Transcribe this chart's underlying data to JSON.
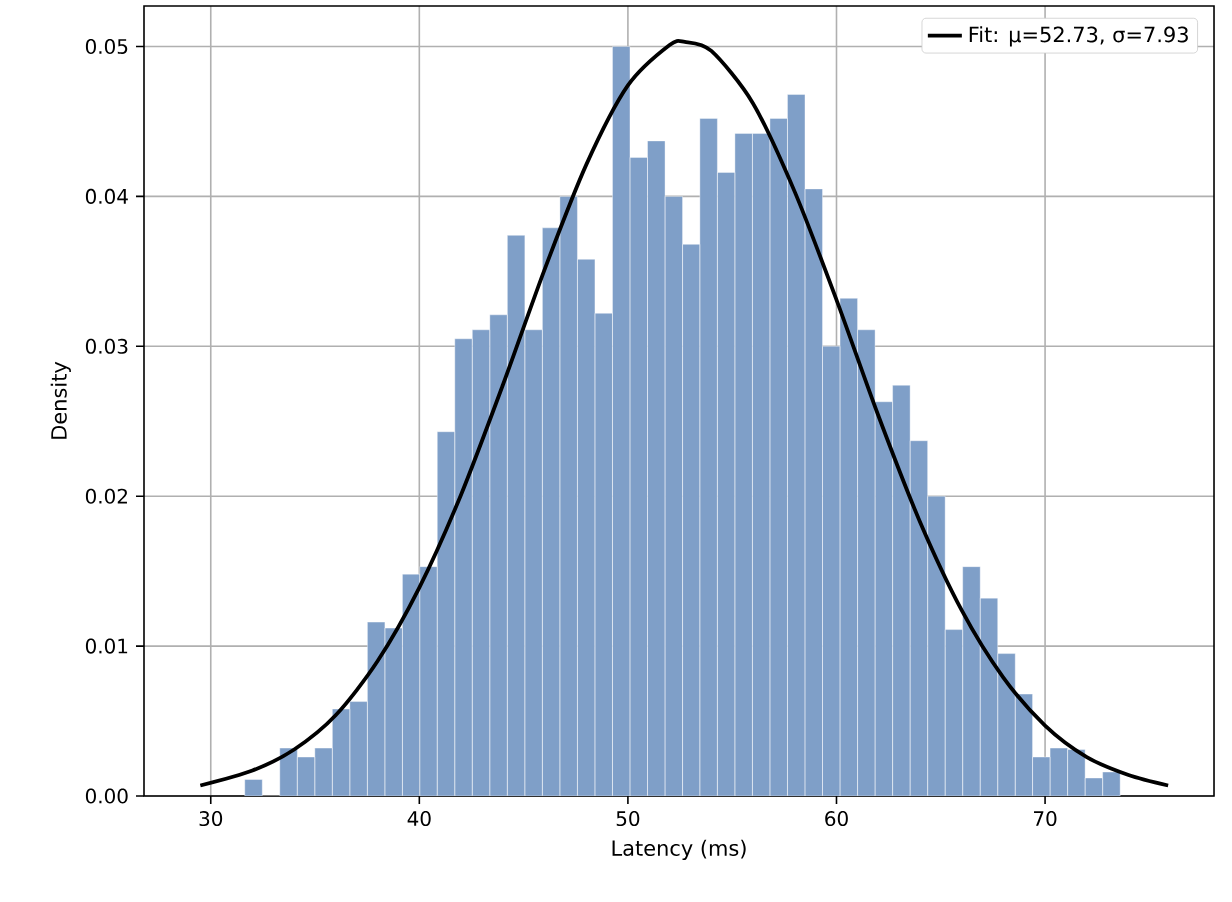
{
  "chart_data": {
    "type": "histogram",
    "xlabel": "Latency (ms)",
    "ylabel": "Density",
    "bins": [
      31.63,
      32.47,
      33.31,
      34.15,
      34.99,
      35.83,
      36.67,
      37.51,
      38.35,
      39.19,
      40.02,
      40.86,
      41.7,
      42.54,
      43.38,
      44.22,
      45.06,
      45.9,
      46.74,
      47.58,
      48.42,
      49.26,
      50.1,
      50.94,
      51.78,
      52.62,
      53.45,
      54.29,
      55.13,
      55.97,
      56.81,
      57.65,
      58.49,
      59.33,
      60.17,
      61.01,
      61.85,
      62.69,
      63.53,
      64.37,
      65.21,
      66.05,
      66.89,
      67.73,
      68.57,
      69.4,
      70.24,
      71.08,
      71.92,
      72.76,
      73.6
    ],
    "values": [
      0.0011,
      0,
      0.0032,
      0.0026,
      0.0032,
      0.0058,
      0.0063,
      0.0116,
      0.0112,
      0.0148,
      0.0153,
      0.0243,
      0.0305,
      0.0311,
      0.0321,
      0.0374,
      0.0311,
      0.0379,
      0.04,
      0.0358,
      0.0322,
      0.05,
      0.0426,
      0.0437,
      0.04,
      0.0368,
      0.0452,
      0.0416,
      0.0442,
      0.0442,
      0.0452,
      0.0468,
      0.0405,
      0.03,
      0.0332,
      0.0311,
      0.0263,
      0.0274,
      0.0237,
      0.02,
      0.0111,
      0.0153,
      0.0132,
      0.0095,
      0.0068,
      0.0026,
      0.0032,
      0.0031,
      0.0012,
      0.0016
    ],
    "color": "#7f9fc8",
    "series": [
      {
        "type": "line",
        "name": "Fit: μ=52.73, σ=7.93",
        "color": "#000000",
        "x": [
          29.5,
          32,
          34,
          36,
          38,
          40,
          42,
          44,
          46,
          48,
          50,
          52,
          52.73,
          54,
          56,
          58,
          60,
          62,
          64,
          66,
          68,
          70,
          72,
          74,
          75.9
        ],
        "values": [
          0.0007,
          0.0017,
          0.0031,
          0.0054,
          0.009,
          0.0139,
          0.0201,
          0.0274,
          0.0351,
          0.0421,
          0.0474,
          0.0501,
          0.0503,
          0.0497,
          0.0462,
          0.0403,
          0.0331,
          0.0254,
          0.0183,
          0.0124,
          0.0079,
          0.0047,
          0.0026,
          0.0014,
          0.0007
        ]
      }
    ],
    "xlim": [
      26.8,
      78.1
    ],
    "ylim": [
      0,
      0.0527
    ],
    "xticks": [
      30,
      40,
      50,
      60,
      70
    ],
    "yticks": [
      {
        "value": 0,
        "label": "0.00"
      },
      {
        "value": 0.01,
        "label": "0.01"
      },
      {
        "value": 0.02,
        "label": "0.02"
      },
      {
        "value": 0.03,
        "label": "0.03"
      },
      {
        "value": 0.04,
        "label": "0.04"
      },
      {
        "value": 0.05,
        "label": "0.05"
      }
    ],
    "grid": true,
    "legend": "top right"
  }
}
